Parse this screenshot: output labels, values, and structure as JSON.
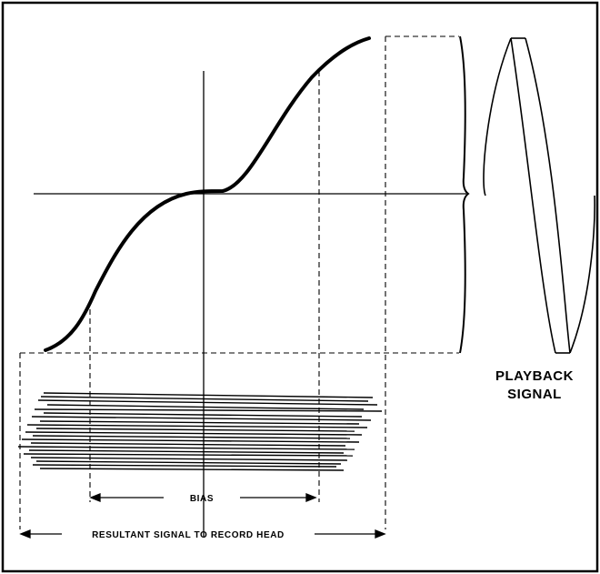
{
  "diagram": {
    "labels": {
      "playback_line1": "PLAYBACK",
      "playback_line2": "SIGNAL",
      "bias": "BIAS",
      "resultant": "RESULTANT SIGNAL TO RECORD HEAD"
    },
    "colors": {
      "ink": "#000000",
      "paper": "#ffffff"
    }
  }
}
